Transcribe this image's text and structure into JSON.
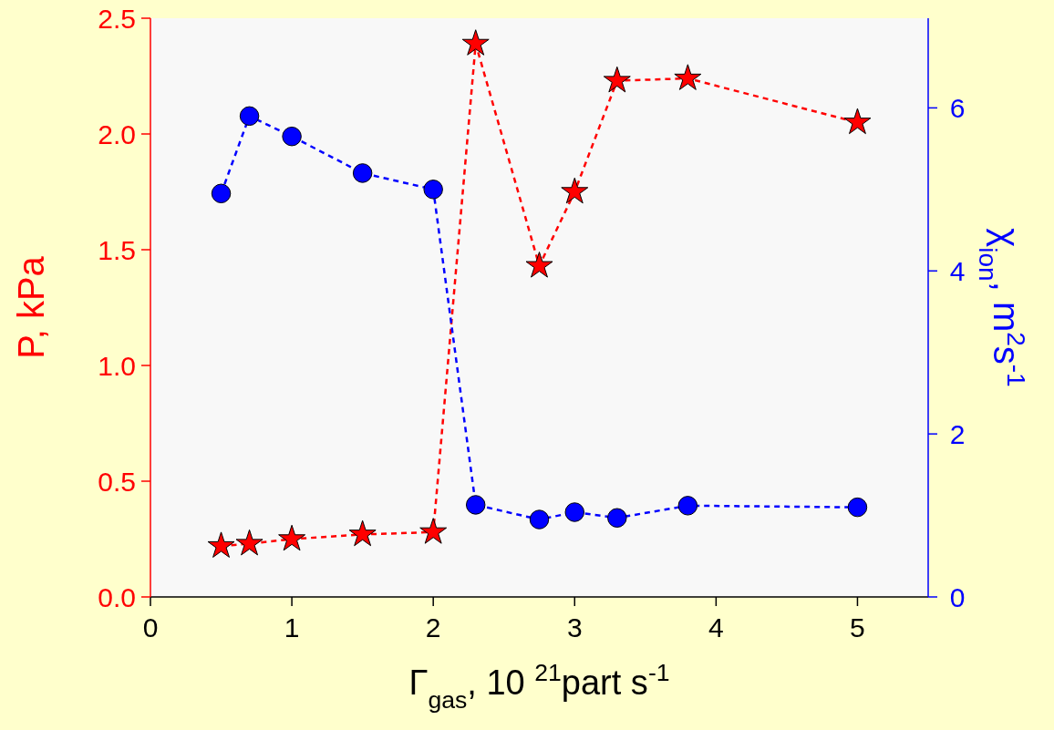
{
  "chart_data": {
    "type": "line",
    "xlabel": "Γ$_{gas}$, 10 $^{21}$part s$^{-1}$",
    "ylabel": "P, kPa",
    "y2label": "χ$_{ion}$, m$^{2}$s$^{-1}$",
    "xlim": [
      0,
      5.5
    ],
    "xticks": [
      0,
      1,
      2,
      3,
      4,
      5
    ],
    "ylim": [
      0,
      2.5
    ],
    "yticks": [
      {
        "value": 0,
        "label": "0.0"
      },
      {
        "value": 0.5,
        "label": "0.5"
      },
      {
        "value": 1,
        "label": "1.0"
      },
      {
        "value": 1.5,
        "label": "1.5"
      },
      {
        "value": 2,
        "label": "2.0"
      },
      {
        "value": 2.5,
        "label": "2.5"
      }
    ],
    "y2lim": [
      0,
      7.1
    ],
    "y2ticks": [
      0,
      2,
      4,
      6
    ],
    "x": [
      0.5,
      0.7,
      1,
      1.5,
      2,
      2.3,
      2.75,
      3,
      3.3,
      3.8,
      5
    ],
    "grid": false,
    "line_style": "dashed",
    "series": [
      {
        "color": "#ff0000",
        "marker": "star",
        "values": [
          0.22,
          0.23,
          0.25,
          0.27,
          0.28,
          2.39,
          1.43,
          1.75,
          2.23,
          2.24,
          2.05
        ]
      },
      {
        "color": "#0000ff",
        "marker": "circle",
        "axis": "y2",
        "values": [
          4.95,
          5.9,
          5.65,
          5.2,
          5.0,
          1.13,
          0.95,
          1.04,
          0.97,
          1.12,
          1.1
        ]
      }
    ]
  }
}
